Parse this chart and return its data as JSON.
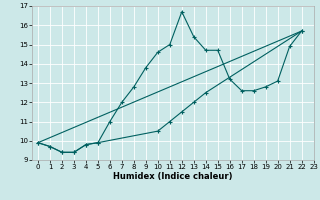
{
  "xlabel": "Humidex (Indice chaleur)",
  "background_color": "#cce8e8",
  "line_color": "#006060",
  "grid_color": "#ffffff",
  "ylim": [
    9,
    17
  ],
  "xlim": [
    -0.5,
    23
  ],
  "yticks": [
    9,
    10,
    11,
    12,
    13,
    14,
    15,
    16,
    17
  ],
  "xticks": [
    0,
    1,
    2,
    3,
    4,
    5,
    6,
    7,
    8,
    9,
    10,
    11,
    12,
    13,
    14,
    15,
    16,
    17,
    18,
    19,
    20,
    21,
    22,
    23
  ],
  "series1_x": [
    0,
    1,
    2,
    3,
    4,
    5,
    6,
    7,
    8,
    9,
    10,
    11,
    12,
    13,
    14,
    15,
    16,
    17,
    18,
    19,
    20,
    21,
    22
  ],
  "series1_y": [
    9.9,
    9.7,
    9.4,
    9.4,
    9.8,
    9.9,
    11.0,
    12.0,
    12.8,
    13.8,
    14.6,
    15.0,
    16.7,
    15.4,
    14.7,
    14.7,
    13.2,
    12.6,
    12.6,
    12.8,
    13.1,
    14.9,
    15.7
  ],
  "series2_x": [
    0,
    1,
    2,
    3,
    4,
    5,
    10,
    11,
    12,
    13,
    14,
    22
  ],
  "series2_y": [
    9.9,
    9.7,
    9.4,
    9.4,
    9.8,
    9.9,
    10.5,
    11.0,
    11.5,
    12.0,
    12.5,
    15.7
  ],
  "series3_x": [
    0,
    22
  ],
  "series3_y": [
    9.9,
    15.7
  ],
  "tick_fontsize": 5,
  "xlabel_fontsize": 6,
  "linewidth": 0.8,
  "markersize": 3
}
